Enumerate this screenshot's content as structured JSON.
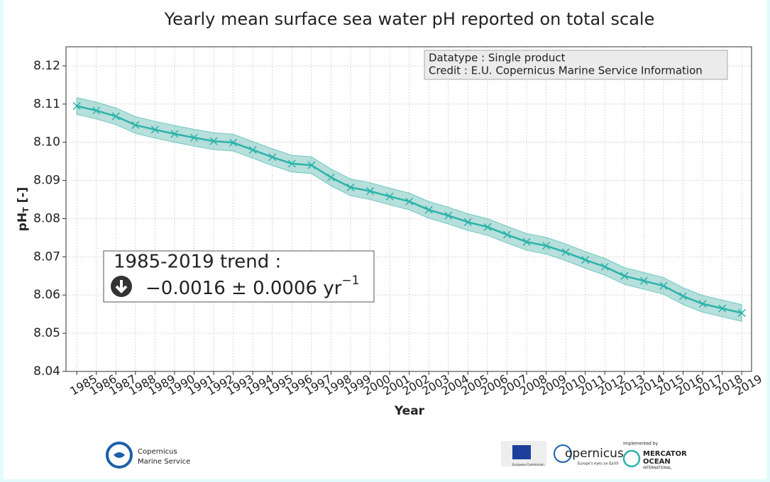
{
  "chart_data": {
    "type": "line",
    "title": "Yearly mean surface sea water pH reported on total scale",
    "xlabel": "Year",
    "ylabel": {
      "text": "pH",
      "subscript": "T",
      "suffix": " [-]"
    },
    "x": [
      1985,
      1986,
      1987,
      1988,
      1989,
      1990,
      1991,
      1992,
      1993,
      1994,
      1995,
      1996,
      1997,
      1998,
      1999,
      2000,
      2001,
      2002,
      2003,
      2004,
      2005,
      2006,
      2007,
      2008,
      2009,
      2010,
      2011,
      2012,
      2013,
      2014,
      2015,
      2016,
      2017,
      2018,
      2019
    ],
    "series": [
      {
        "color": "#2bb3aa",
        "band_color": "#6fbfb7",
        "error": 0.0022,
        "values": [
          8.1095,
          8.1083,
          8.1068,
          8.1045,
          8.1033,
          8.1022,
          8.1012,
          8.1003,
          8.0999,
          8.098,
          8.0961,
          8.0944,
          8.094,
          8.0908,
          8.0882,
          8.0872,
          8.0858,
          8.0845,
          8.0823,
          8.0808,
          8.0791,
          8.0778,
          8.0758,
          8.0739,
          8.0729,
          8.0712,
          8.0692,
          8.0674,
          8.065,
          8.0637,
          8.0624,
          8.0597,
          8.0577,
          8.0565,
          8.0553
        ]
      }
    ],
    "xlim": [
      1984.45,
      2019.5
    ],
    "xticks": [
      1985,
      1986,
      1987,
      1988,
      1989,
      1990,
      1991,
      1992,
      1993,
      1994,
      1995,
      1996,
      1997,
      1998,
      1999,
      2000,
      2001,
      2002,
      2003,
      2004,
      2005,
      2006,
      2007,
      2008,
      2009,
      2010,
      2011,
      2012,
      2013,
      2014,
      2015,
      2016,
      2017,
      2018,
      2019
    ],
    "ylim": [
      8.04,
      8.125
    ],
    "yticks": [
      8.04,
      8.05,
      8.06,
      8.07,
      8.08,
      8.09,
      {
        "value": 8.1,
        "label": "8.10"
      },
      8.11,
      8.12
    ],
    "grid": true,
    "info": [
      "Datatype : Single product",
      "Credit : E.U. Copernicus Marine Service Information"
    ],
    "trend": {
      "title": "1985-2019 trend :",
      "value": "−0.0016 ± 0.0006 yr",
      "exponent": "−1"
    }
  },
  "logos": {
    "cms": [
      "Copernicus",
      "Marine Service"
    ],
    "eu": "European Commission",
    "copernicus": {
      "name": "opernicus",
      "tagline": "Europe's eyes on Earth"
    },
    "mercator": {
      "caption": "implemented by",
      "lines": [
        "MERCATOR",
        "OCEAN",
        "INTERNATIONAL"
      ]
    }
  }
}
